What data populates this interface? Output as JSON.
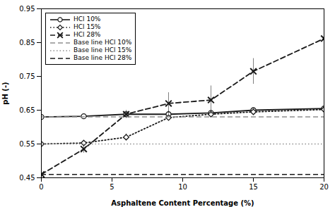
{
  "chart_data": {
    "type": "line",
    "xlabel": "Asphaltene Content Percentage (%)",
    "ylabel": "pH (-)",
    "x": [
      0,
      3,
      6,
      9,
      12,
      15,
      20
    ],
    "series": [
      {
        "name": "HCl 10%",
        "color": "#1a1a1a",
        "marker": "circle",
        "line_style": "solid",
        "values": [
          0.63,
          0.632,
          0.638,
          0.638,
          0.642,
          0.65,
          0.655
        ],
        "errors": [
          0.004,
          0.004,
          0.004,
          0.01,
          0.004,
          0.006,
          0.004
        ]
      },
      {
        "name": "HCl 15%",
        "color": "#1a1a1a",
        "marker": "diamond",
        "line_style": "dotted",
        "values": [
          0.55,
          0.553,
          0.57,
          0.628,
          0.638,
          0.645,
          0.652
        ],
        "errors": [
          0.004,
          0.006,
          0.01,
          0.008,
          0.004,
          0.006,
          0.004
        ]
      },
      {
        "name": "HCl 28%",
        "color": "#1a1a1a",
        "marker": "x",
        "line_style": "dashed",
        "values": [
          0.46,
          0.535,
          0.638,
          0.67,
          0.68,
          0.765,
          0.862
        ],
        "errors": [
          0.004,
          0.012,
          0.012,
          0.032,
          0.042,
          0.038,
          0.008
        ]
      },
      {
        "name": "Base line HCl 10%",
        "type": "hline",
        "color": "#909090",
        "line_style": "dashed",
        "value": 0.63
      },
      {
        "name": "Base line HCl 15%",
        "type": "hline",
        "color": "#909090",
        "line_style": "dotted",
        "value": 0.55
      },
      {
        "name": "Base line HCl 28%",
        "type": "hline",
        "color": "#1a1a1a",
        "line_style": "dashed",
        "value": 0.46
      }
    ],
    "xlim": [
      0,
      20
    ],
    "xticks": [
      0,
      5,
      10,
      15,
      20
    ],
    "ylim": [
      0.45,
      0.95
    ],
    "yticks": [
      0.45,
      0.55,
      0.65,
      0.75,
      0.85,
      0.95
    ],
    "grid": false,
    "legend": "upper left"
  }
}
